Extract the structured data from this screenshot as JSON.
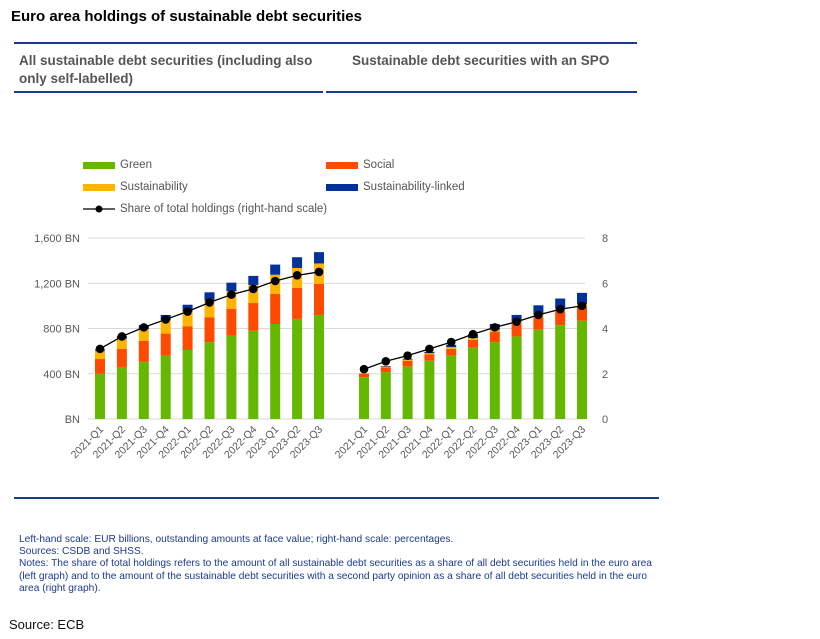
{
  "title": "Euro area holdings of sustainable debt securities",
  "panels": {
    "left_title": "All sustainable debt securities (including also only self-labelled)",
    "right_title": "Sustainable debt securities with an SPO"
  },
  "legend": {
    "green": "Green",
    "social": "Social",
    "sustainability": "Sustainability",
    "sustainability_linked": "Sustainability-linked",
    "share": "Share of total holdings (right-hand scale)"
  },
  "colors": {
    "green": "#65b800",
    "social": "#ff4b00",
    "sustainability": "#ffb400",
    "sustainability_linked": "#003299",
    "share": "#000000",
    "rule": "#1c3a8f",
    "grid": "#d9d9d9",
    "axis_text": "#595959"
  },
  "notes": {
    "line1": "Left-hand scale: EUR billions, outstanding amounts at face value; right-hand scale: percentages.",
    "line2": "Sources: CSDB and SHSS.",
    "line3": "Notes: The share of total holdings refers to the amount of all sustainable debt securities as a share of all debt securities held in the euro area (left graph) and to the amount of the sustainable debt securities with a second party opinion as a share of all debt securities held in the euro area (right graph)."
  },
  "source": "Source: ECB",
  "chart_data": [
    {
      "type": "bar",
      "stacked": true,
      "title": "All sustainable debt securities (including also only self-labelled)",
      "categories": [
        "2021-Q1",
        "2021-Q2",
        "2021-Q3",
        "2021-Q4",
        "2022-Q1",
        "2022-Q2",
        "2022-Q3",
        "2022-Q4",
        "2023-Q1",
        "2023-Q2",
        "2023-Q3"
      ],
      "series": [
        {
          "name": "Green",
          "values": [
            400,
            460,
            505,
            560,
            610,
            680,
            735,
            780,
            840,
            885,
            920
          ]
        },
        {
          "name": "Social",
          "values": [
            130,
            160,
            185,
            195,
            210,
            220,
            240,
            245,
            265,
            275,
            275
          ]
        },
        {
          "name": "Sustainability",
          "values": [
            75,
            90,
            105,
            120,
            130,
            145,
            155,
            160,
            170,
            175,
            180
          ]
        },
        {
          "name": "Sustainability-linked",
          "values": [
            10,
            25,
            35,
            45,
            60,
            75,
            75,
            80,
            90,
            95,
            100
          ]
        }
      ],
      "line": {
        "name": "Share of total holdings (right-hand scale)",
        "values": [
          3.1,
          3.65,
          4.05,
          4.4,
          4.75,
          5.15,
          5.5,
          5.75,
          6.1,
          6.35,
          6.5
        ]
      },
      "ylabel_left": "",
      "ylim_left": [
        0,
        1600
      ],
      "yticks_left": [
        "BN",
        "400 BN",
        "800 BN",
        "1,200 BN",
        "1,600 BN"
      ],
      "grid": true,
      "legend_position": "top"
    },
    {
      "type": "bar",
      "stacked": true,
      "title": "Sustainable debt securities with an SPO",
      "categories": [
        "2021-Q1",
        "2021-Q2",
        "2021-Q3",
        "2021-Q4",
        "2022-Q1",
        "2022-Q2",
        "2022-Q3",
        "2022-Q4",
        "2023-Q1",
        "2023-Q2",
        "2023-Q3"
      ],
      "series": [
        {
          "name": "Green",
          "values": [
            370,
            415,
            465,
            515,
            560,
            630,
            680,
            730,
            790,
            830,
            870
          ]
        },
        {
          "name": "Social",
          "values": [
            30,
            40,
            50,
            55,
            60,
            70,
            90,
            110,
            110,
            120,
            120
          ]
        },
        {
          "name": "Sustainability",
          "values": [
            5,
            8,
            10,
            12,
            15,
            15,
            20,
            20,
            25,
            25,
            25
          ]
        },
        {
          "name": "Sustainability-linked",
          "values": [
            0,
            5,
            8,
            12,
            20,
            35,
            50,
            60,
            80,
            90,
            100
          ]
        }
      ],
      "line": {
        "name": "Share of total holdings (right-hand scale)",
        "values": [
          2.2,
          2.55,
          2.8,
          3.1,
          3.4,
          3.75,
          4.05,
          4.3,
          4.6,
          4.85,
          5.0
        ]
      },
      "ylabel_right": "",
      "ylim_right": [
        0,
        8
      ],
      "yticks_right": [
        "0",
        "2",
        "4",
        "6",
        "8"
      ],
      "grid": true,
      "legend_position": "top"
    }
  ]
}
